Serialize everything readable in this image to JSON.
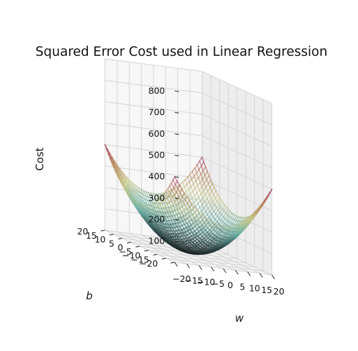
{
  "chart_data": {
    "type": "surface",
    "title": "Squared Error Cost used in Linear Regression",
    "xlabel": "w",
    "ylabel": "b",
    "zlabel": "Cost",
    "xlim": [
      -20,
      20
    ],
    "ylim": [
      -20,
      20
    ],
    "zlim": [
      0,
      800
    ],
    "x_ticks": [
      -20,
      -15,
      -10,
      -5,
      0,
      5,
      10,
      15,
      20
    ],
    "y_ticks": [
      -20,
      -15,
      -10,
      -5,
      0,
      5,
      10,
      15,
      20
    ],
    "z_ticks": [
      100,
      200,
      300,
      400,
      500,
      600,
      700,
      800
    ],
    "x_tick_labels": [
      "−20",
      "−15",
      "−10",
      "−5",
      "0",
      "5",
      "10",
      "15",
      "20"
    ],
    "y_tick_labels": [
      "−20",
      "−15",
      "−10",
      "−5",
      "0",
      "5",
      "10",
      "15",
      "20"
    ],
    "z_tick_labels": [
      "100",
      "200",
      "300",
      "400",
      "500",
      "600",
      "700",
      "800"
    ],
    "surface": {
      "formula": "cost = (w^2 + b^2) / 2",
      "w_range": [
        -20,
        20
      ],
      "b_range": [
        -20,
        20
      ],
      "corner_values": [
        {
          "w": -20,
          "b": -20,
          "cost": 400
        },
        {
          "w": 20,
          "b": -20,
          "cost": 400
        },
        {
          "w": -20,
          "b": 20,
          "cost": 400
        },
        {
          "w": 20,
          "b": 20,
          "cost": 400
        }
      ],
      "edge_midpoints": [
        {
          "w": 0,
          "b": 20,
          "cost": 200
        },
        {
          "w": 20,
          "b": 0,
          "cost": 200
        },
        {
          "w": 0,
          "b": -20,
          "cost": 200
        },
        {
          "w": -20,
          "b": 0,
          "cost": 200
        }
      ],
      "minimum": {
        "w": 0,
        "b": 0,
        "cost": 0
      }
    },
    "colormap": [
      "#1a1f1f",
      "#2f4f4f",
      "#6fb3a8",
      "#c8c88a",
      "#b8845a",
      "#a0305a"
    ],
    "grid": true
  }
}
